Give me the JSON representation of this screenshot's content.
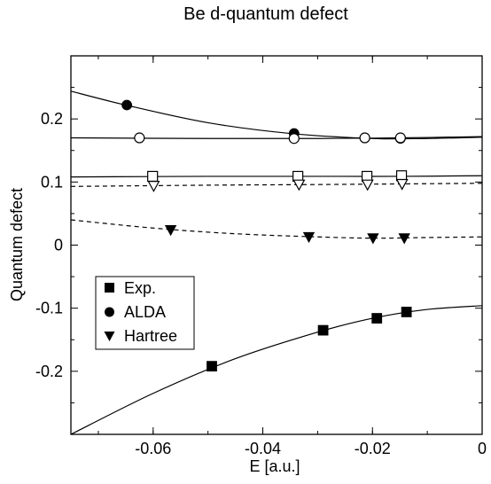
{
  "chart_data": {
    "type": "scatter",
    "title": "Be d-quantum defect",
    "xlabel": "E [a.u.]",
    "ylabel": "Quantum defect",
    "xlim": [
      -0.075,
      0.0
    ],
    "ylim": [
      -0.3,
      0.3
    ],
    "x_ticks": [
      -0.06,
      -0.04,
      -0.02,
      0
    ],
    "x_tick_labels": [
      "-0.06",
      "-0.04",
      "-0.02",
      "0"
    ],
    "y_ticks": [
      -0.2,
      -0.1,
      0,
      0.1,
      0.2
    ],
    "y_tick_labels": [
      "-0.2",
      "-0.1",
      "0",
      "0.1",
      "0.2"
    ],
    "grid": false,
    "legend_position": "lower-left",
    "legend": [
      {
        "label": "Exp.",
        "marker": "square",
        "filled": true
      },
      {
        "label": "ALDA",
        "marker": "circle",
        "filled": true
      },
      {
        "label": "Hartree",
        "marker": "triangle-down",
        "filled": true
      }
    ],
    "series": [
      {
        "name": "Exp.",
        "marker": "square",
        "filled": true,
        "x": [
          -0.0493,
          -0.029,
          -0.0192,
          -0.0138
        ],
        "y": [
          -0.192,
          -0.135,
          -0.116,
          -0.106
        ]
      },
      {
        "name": "ALDA",
        "marker": "circle",
        "filled": true,
        "x": [
          -0.0648,
          -0.0343,
          -0.0214,
          -0.0149
        ],
        "y": [
          0.222,
          0.177,
          0.17,
          0.169
        ]
      },
      {
        "name": "Hartree",
        "marker": "triangle-down",
        "filled": true,
        "x": [
          -0.0568,
          -0.0316,
          -0.0199,
          -0.0142
        ],
        "y": [
          0.024,
          0.013,
          0.011,
          0.011
        ]
      },
      {
        "marker": "circle",
        "filled": false,
        "x": [
          -0.0625,
          -0.0343,
          -0.0214,
          -0.0149
        ],
        "y": [
          0.17,
          0.169,
          0.17,
          0.17
        ]
      },
      {
        "marker": "square",
        "filled": false,
        "x": [
          -0.0601,
          -0.0336,
          -0.021,
          -0.0147
        ],
        "y": [
          0.109,
          0.109,
          0.109,
          0.11
        ]
      },
      {
        "marker": "triangle-down",
        "filled": false,
        "x": [
          -0.0599,
          -0.0334,
          -0.0209,
          -0.0146
        ],
        "y": [
          0.094,
          0.096,
          0.096,
          0.097
        ]
      }
    ],
    "fit_curves": [
      {
        "style": "solid",
        "x": [
          -0.075,
          -0.065,
          -0.05,
          -0.035,
          -0.02,
          -0.01,
          0.0
        ],
        "y": [
          0.244,
          0.222,
          0.194,
          0.177,
          0.169,
          0.169,
          0.171
        ]
      },
      {
        "style": "solid",
        "x": [
          -0.075,
          -0.05,
          -0.03,
          -0.015,
          0.0
        ],
        "y": [
          0.17,
          0.169,
          0.169,
          0.17,
          0.172
        ]
      },
      {
        "style": "solid",
        "x": [
          -0.075,
          -0.05,
          -0.03,
          -0.015,
          0.0
        ],
        "y": [
          0.108,
          0.109,
          0.109,
          0.109,
          0.11
        ]
      },
      {
        "style": "dashed",
        "x": [
          -0.075,
          -0.05,
          -0.03,
          -0.015,
          0.0
        ],
        "y": [
          0.093,
          0.095,
          0.096,
          0.097,
          0.098
        ]
      },
      {
        "style": "dashed",
        "x": [
          -0.075,
          -0.06,
          -0.045,
          -0.03,
          -0.02,
          -0.01,
          0.0
        ],
        "y": [
          0.04,
          0.027,
          0.018,
          0.013,
          0.011,
          0.012,
          0.013
        ]
      },
      {
        "style": "solid",
        "x": [
          -0.075,
          -0.06,
          -0.045,
          -0.03,
          -0.02,
          -0.01,
          0.0
        ],
        "y": [
          -0.3,
          -0.235,
          -0.18,
          -0.138,
          -0.116,
          -0.102,
          -0.096
        ]
      }
    ]
  }
}
